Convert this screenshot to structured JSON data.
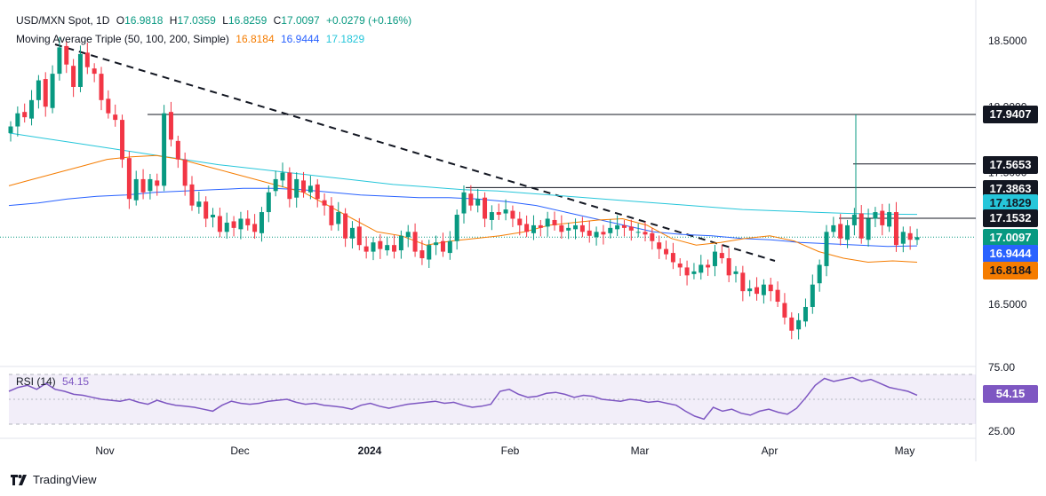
{
  "header": {
    "symbol": "USD/MXN Spot, 1D",
    "open_label": "O",
    "open": "16.9818",
    "high_label": "H",
    "high": "17.0359",
    "low_label": "L",
    "low": "16.8259",
    "close_label": "C",
    "close": "17.0097",
    "change": "+0.0279 (+0.16%)",
    "ma_title": "Moving Average Triple (50, 100, 200, Simple)",
    "ma50": "16.8184",
    "ma100": "16.9444",
    "ma200": "17.1829"
  },
  "rsi": {
    "title": "RSI (14)",
    "value": "54.15"
  },
  "branding": {
    "name": "TradingView"
  },
  "colors": {
    "up": "#089981",
    "down": "#F23645",
    "ma50": "#F57C00",
    "ma100": "#2962FF",
    "ma200": "#26C6DA",
    "rsi": "#7E57C2",
    "price_badge": "#089981",
    "level_badge": "#131722"
  },
  "chart_data": {
    "type": "candlestick",
    "title": "USD/MXN Spot, 1D",
    "ylim": [
      16.15,
      18.7
    ],
    "y_ticks": [
      "18.5000",
      "18.0000",
      "17.5000",
      "16.5000"
    ],
    "x_ticks": [
      "Nov",
      "Dec",
      "2024",
      "Feb",
      "Mar",
      "Apr",
      "May"
    ],
    "price_labels": {
      "r1": "17.9407",
      "r2": "17.5653",
      "r3": "17.3863",
      "ma200": "17.1829",
      "r4": "17.1532",
      "last": "17.0097",
      "ma100": "16.9444",
      "ma50": "16.8184"
    },
    "horizontal_levels": [
      17.9407,
      17.5653,
      17.3863,
      17.1532
    ],
    "last_price": 17.0097,
    "closes": [
      17.85,
      17.95,
      17.92,
      18.05,
      18.2,
      18.0,
      18.25,
      18.45,
      18.32,
      18.15,
      18.4,
      18.3,
      18.25,
      18.05,
      17.95,
      17.9,
      17.6,
      17.3,
      17.45,
      17.35,
      17.45,
      17.4,
      17.95,
      17.75,
      17.6,
      17.4,
      17.25,
      17.28,
      17.15,
      17.18,
      17.05,
      17.12,
      17.08,
      17.15,
      17.1,
      17.05,
      17.2,
      17.35,
      17.45,
      17.5,
      17.3,
      17.45,
      17.35,
      17.4,
      17.3,
      17.25,
      17.1,
      17.2,
      17.0,
      17.08,
      16.95,
      16.9,
      16.97,
      16.92,
      16.95,
      16.9,
      17.02,
      17.05,
      16.9,
      16.85,
      16.95,
      16.97,
      16.9,
      16.98,
      17.18,
      17.35,
      17.25,
      17.3,
      17.15,
      17.2,
      17.18,
      17.22,
      17.15,
      17.1,
      17.05,
      17.1,
      17.08,
      17.15,
      17.1,
      17.05,
      17.08,
      17.1,
      17.05,
      17.02,
      17.05,
      17.03,
      17.08,
      17.1,
      17.08,
      17.06,
      17.05,
      17.03,
      16.98,
      16.92,
      16.88,
      16.82,
      16.78,
      16.72,
      16.75,
      16.8,
      16.78,
      16.9,
      16.85,
      16.72,
      16.75,
      16.6,
      16.62,
      16.58,
      16.65,
      16.6,
      16.52,
      16.4,
      16.3,
      16.38,
      16.48,
      16.65,
      16.8,
      17.05,
      17.1,
      17.0,
      17.1,
      17.18,
      17.0,
      17.15,
      17.2,
      17.1,
      17.2,
      16.95,
      17.05,
      16.99,
      17.0097
    ],
    "ma50": [
      17.4,
      17.45,
      17.5,
      17.55,
      17.6,
      17.62,
      17.63,
      17.6,
      17.55,
      17.5,
      17.45,
      17.4,
      17.35,
      17.25,
      17.15,
      17.05,
      17.02,
      16.95,
      16.98,
      17.0,
      17.02,
      17.05,
      17.1,
      17.12,
      17.14,
      17.15,
      17.1,
      17.0,
      16.95,
      16.97,
      17.0,
      17.02,
      16.98,
      16.9,
      16.85,
      16.82,
      16.83,
      16.82
    ],
    "ma100": [
      17.25,
      17.27,
      17.3,
      17.32,
      17.33,
      17.35,
      17.36,
      17.37,
      17.38,
      17.38,
      17.37,
      17.35,
      17.33,
      17.32,
      17.31,
      17.31,
      17.3,
      17.28,
      17.25,
      17.2,
      17.15,
      17.1,
      17.05,
      17.03,
      17.02,
      17.0,
      16.99,
      16.97,
      16.96,
      16.95,
      16.94,
      16.944
    ],
    "ma200": [
      17.8,
      17.76,
      17.72,
      17.68,
      17.64,
      17.6,
      17.56,
      17.53,
      17.5,
      17.47,
      17.44,
      17.41,
      17.39,
      17.37,
      17.36,
      17.34,
      17.32,
      17.3,
      17.28,
      17.26,
      17.24,
      17.22,
      17.21,
      17.2,
      17.19,
      17.185,
      17.183
    ],
    "rsi_ylim": [
      25,
      75
    ],
    "rsi_ticks": [
      "75.00",
      "25.00"
    ],
    "rsi_values": [
      58,
      62,
      64,
      60,
      66,
      60,
      58,
      55,
      54,
      52,
      50,
      49,
      48,
      50,
      47,
      45,
      49,
      46,
      44,
      43,
      42,
      40,
      38,
      44,
      48,
      46,
      45,
      46,
      48,
      49,
      50,
      47,
      45,
      46,
      44,
      43,
      42,
      40,
      44,
      46,
      43,
      41,
      43,
      45,
      46,
      47,
      48,
      46,
      47,
      44,
      42,
      43,
      45,
      58,
      60,
      55,
      52,
      53,
      56,
      57,
      55,
      52,
      54,
      53,
      50,
      49,
      48,
      50,
      49,
      47,
      48,
      46,
      44,
      38,
      33,
      30,
      42,
      38,
      40,
      36,
      34,
      38,
      40,
      37,
      35,
      41,
      52,
      64,
      71,
      68,
      70,
      72,
      68,
      70,
      66,
      62,
      60,
      58,
      54.15
    ]
  }
}
